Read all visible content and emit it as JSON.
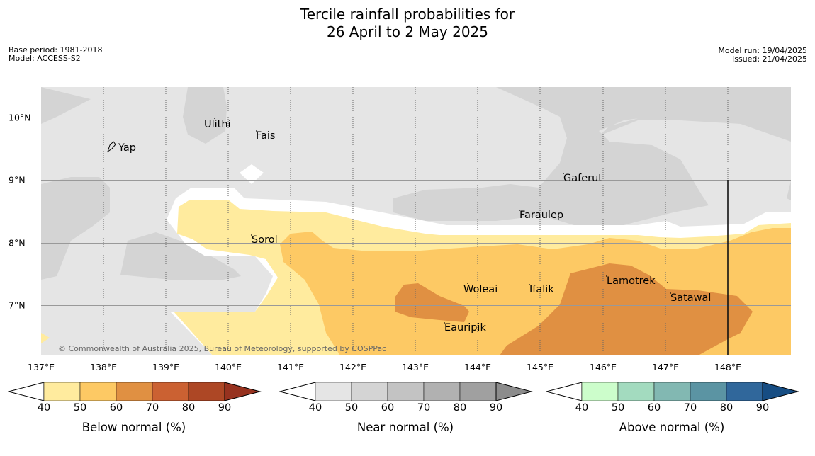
{
  "title_line1": "Tercile rainfall probabilities for",
  "title_line2": "26 April to 2 May 2025",
  "base_period": "Base period: 1981-2018",
  "model": "Model: ACCESS-S2",
  "model_run": "Model run: 19/04/2025",
  "issued": "Issued: 21/04/2025",
  "copyright": "© Commonwealth of Australia 2025, Bureau of Meteorology, supported by COSPPac",
  "lon_labels": [
    "137°E",
    "138°E",
    "139°E",
    "140°E",
    "141°E",
    "142°E",
    "143°E",
    "144°E",
    "145°E",
    "146°E",
    "147°E",
    "148°E"
  ],
  "lat_labels": [
    "10°N",
    "9°N",
    "8°N",
    "7°N"
  ],
  "places": [
    "Yap",
    "Ulithi",
    "Fais",
    "Gaferut",
    "Faraulep",
    "Sorol",
    "Woleai",
    "Ifalik",
    "Lamotrek",
    "Satawal",
    "Eauripik"
  ],
  "colorbars": [
    {
      "title": "Below normal (%)",
      "ticks": [
        "40",
        "50",
        "60",
        "70",
        "80",
        "90"
      ],
      "colors": [
        "#ffeb9e",
        "#fdc964",
        "#e09042",
        "#cb6132",
        "#ad4725",
        "#97321f"
      ]
    },
    {
      "title": "Near normal (%)",
      "ticks": [
        "40",
        "50",
        "60",
        "70",
        "80",
        "90"
      ],
      "colors": [
        "#e5e5e5",
        "#d4d4d4",
        "#c3c3c3",
        "#b1b1b1",
        "#a0a0a0",
        "#8c8c8c"
      ]
    },
    {
      "title": "Above normal (%)",
      "ticks": [
        "40",
        "50",
        "60",
        "70",
        "80",
        "90"
      ],
      "colors": [
        "#ccfdcb",
        "#a3dbbf",
        "#82b8b2",
        "#5b94a3",
        "#30679b",
        "#164d83"
      ]
    }
  ]
}
